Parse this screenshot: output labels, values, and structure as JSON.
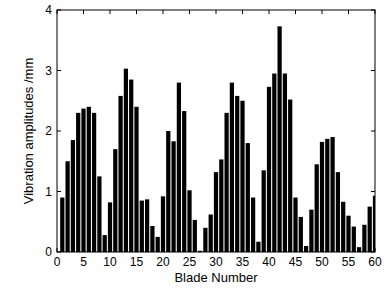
{
  "chart_data": {
    "type": "bar",
    "x_label": "Blade Number",
    "y_label": "Vibration amplitudes /mm",
    "x": [
      1,
      2,
      3,
      4,
      5,
      6,
      7,
      8,
      9,
      10,
      11,
      12,
      13,
      14,
      15,
      16,
      17,
      18,
      19,
      20,
      21,
      22,
      23,
      24,
      25,
      26,
      27,
      28,
      29,
      30,
      31,
      32,
      33,
      34,
      35,
      36,
      37,
      38,
      39,
      40,
      41,
      42,
      43,
      44,
      45,
      46,
      47,
      48,
      49,
      50,
      51,
      52,
      53,
      54,
      55,
      56,
      57,
      58,
      59,
      60
    ],
    "values": [
      0.9,
      1.5,
      1.85,
      2.3,
      2.37,
      2.4,
      2.3,
      1.25,
      0.28,
      0.82,
      1.7,
      2.58,
      3.03,
      2.85,
      2.4,
      0.85,
      0.87,
      0.43,
      0.25,
      0.92,
      2.0,
      1.83,
      2.8,
      2.33,
      1.02,
      0.53,
      0.02,
      0.4,
      0.62,
      1.32,
      1.53,
      2.3,
      2.8,
      2.58,
      2.5,
      1.8,
      0.9,
      0.17,
      1.35,
      2.73,
      2.95,
      3.73,
      2.95,
      2.52,
      0.9,
      0.58,
      0.1,
      0.7,
      1.45,
      1.82,
      1.87,
      1.9,
      1.32,
      0.83,
      0.6,
      0.42,
      0.08,
      0.45,
      0.75,
      0.93
    ],
    "color": "#000000",
    "xlim": [
      0,
      60
    ],
    "xticks": [
      0,
      5,
      10,
      15,
      20,
      25,
      30,
      35,
      40,
      45,
      50,
      55,
      60
    ],
    "ylim": [
      0,
      4
    ],
    "yticks": [
      0,
      1,
      2,
      3,
      4
    ],
    "grid": false
  }
}
